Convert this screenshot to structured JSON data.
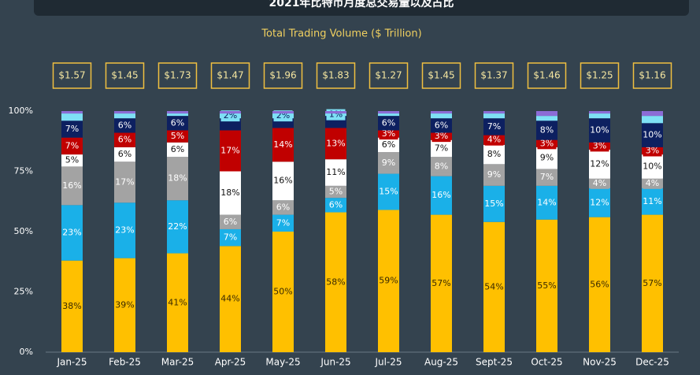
{
  "chart_data": {
    "type": "stacked_bar",
    "title": "2021年比特币月度总交易量以及占比",
    "subtitle": "Total Trading Volume ($ Trillion)",
    "categories": [
      "Jan-25",
      "Feb-25",
      "Mar-25",
      "Apr-25",
      "May-25",
      "Jun-25",
      "Jul-25",
      "Aug-25",
      "Sept-25",
      "Oct-25",
      "Nov-25",
      "Dec-25"
    ],
    "totals": {
      "values": [
        1.57,
        1.45,
        1.73,
        1.47,
        1.96,
        1.83,
        1.27,
        1.45,
        1.37,
        1.46,
        1.25,
        1.16
      ],
      "value_labels": [
        "$1.57",
        "$1.45",
        "$1.73",
        "$1.47",
        "$1.96",
        "$1.83",
        "$1.27",
        "$1.45",
        "$1.37",
        "$1.46",
        "$1.25",
        "$1.16"
      ]
    },
    "ylim": [
      0,
      100
    ],
    "yticks": [
      {
        "value": 0,
        "label": "0%"
      },
      {
        "value": 25,
        "label": "25%"
      },
      {
        "value": 50,
        "label": "50%"
      },
      {
        "value": 75,
        "label": "75%"
      },
      {
        "value": 100,
        "label": "100%"
      }
    ],
    "series": [
      {
        "color": "#ffc000",
        "text_color": "#3a2a00",
        "values": [
          38,
          39,
          41,
          44,
          50,
          58,
          59,
          57,
          54,
          55,
          56,
          57
        ],
        "value_labels": [
          "38%",
          "39%",
          "41%",
          "44%",
          "50%",
          "58%",
          "59%",
          "57%",
          "54%",
          "55%",
          "56%",
          "57%"
        ]
      },
      {
        "color": "#1ab0e8",
        "text_color": "#ffffff",
        "values": [
          23,
          23,
          22,
          7,
          7,
          6,
          15,
          16,
          15,
          14,
          12,
          11
        ],
        "value_labels": [
          "23%",
          "23%",
          "22%",
          "7%",
          "7%",
          "6%",
          "15%",
          "16%",
          "15%",
          "14%",
          "12%",
          "11%"
        ]
      },
      {
        "color": "#a3a3a3",
        "text_color": "#ffffff",
        "values": [
          16,
          17,
          18,
          6,
          6,
          5,
          9,
          8,
          9,
          7,
          4,
          4
        ],
        "value_labels": [
          "16%",
          "17%",
          "18%",
          "6%",
          "6%",
          "5%",
          "9%",
          "8%",
          "9%",
          "7%",
          "4%",
          "4%"
        ]
      },
      {
        "color": "#ffffff",
        "text_color": "#111111",
        "values": [
          5,
          6,
          6,
          18,
          16,
          11,
          6,
          7,
          8,
          9,
          12,
          10
        ],
        "value_labels": [
          "5%",
          "6%",
          "6%",
          "18%",
          "16%",
          "11%",
          "6%",
          "7%",
          "8%",
          "9%",
          "12%",
          "10%"
        ]
      },
      {
        "color": "#c00000",
        "text_color": "#ffffff",
        "values": [
          7,
          6,
          5,
          17,
          14,
          13,
          3,
          3,
          4,
          3,
          3,
          3
        ],
        "value_labels": [
          "7%",
          "6%",
          "5%",
          "17%",
          "14%",
          "13%",
          "3%",
          "3%",
          "4%",
          "3%",
          "3%",
          "3%"
        ]
      },
      {
        "color": "#0d2060",
        "text_color": "#ffffff",
        "values": [
          7,
          6,
          6,
          5,
          4,
          5,
          6,
          6,
          7,
          8,
          10,
          10
        ],
        "value_labels": [
          "7%",
          "6%",
          "6%",
          null,
          null,
          null,
          "6%",
          "6%",
          "7%",
          "8%",
          "10%",
          "10%"
        ]
      },
      {
        "color": "#7ee0f5",
        "text_color": "#0d2060",
        "values": [
          3,
          2,
          1,
          2,
          2,
          1,
          1,
          2,
          2,
          2,
          2,
          3
        ],
        "value_labels": [
          null,
          null,
          null,
          "2%",
          "2%",
          "1%",
          null,
          null,
          null,
          null,
          null,
          null
        ]
      },
      {
        "color": "#8c6cd6",
        "text_color": "#ffffff",
        "values": [
          1,
          1,
          1,
          1,
          1,
          1,
          1,
          1,
          1,
          2,
          1,
          2
        ],
        "value_labels": [
          null,
          null,
          null,
          null,
          null,
          null,
          null,
          null,
          null,
          null,
          null,
          null
        ]
      }
    ]
  }
}
